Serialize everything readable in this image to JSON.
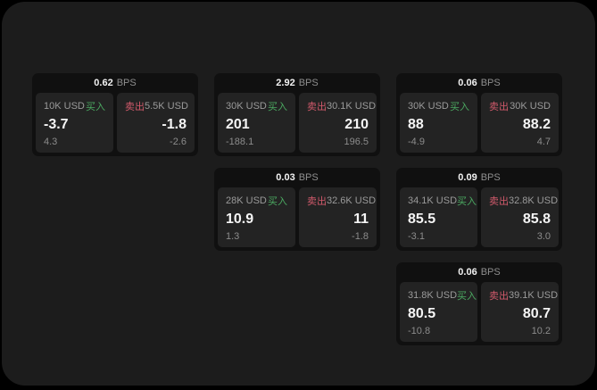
{
  "labels": {
    "buy": "买入",
    "sell": "卖出",
    "bps": "BPS"
  },
  "colors": {
    "background": "#000000",
    "frame": "#1c1c1c",
    "card": "#101010",
    "panel": "#232323",
    "buy_green": "#4ba961",
    "sell_red": "#d15a6b",
    "text_primary": "#f5f5f5",
    "text_secondary": "#9a9a9a"
  },
  "cards": [
    {
      "bps": "0.62",
      "buy": {
        "amount": "10K USD",
        "value": "-3.7",
        "sub": "4.3"
      },
      "sell": {
        "amount": "5.5K USD",
        "value": "-1.8",
        "sub": "-2.6"
      }
    },
    {
      "bps": "2.92",
      "buy": {
        "amount": "30K USD",
        "value": "201",
        "sub": "-188.1"
      },
      "sell": {
        "amount": "30.1K USD",
        "value": "210",
        "sub": "196.5"
      }
    },
    {
      "bps": "0.06",
      "buy": {
        "amount": "30K USD",
        "value": "88",
        "sub": "-4.9"
      },
      "sell": {
        "amount": "30K USD",
        "value": "88.2",
        "sub": "4.7"
      }
    },
    {
      "bps": "0.03",
      "buy": {
        "amount": "28K USD",
        "value": "10.9",
        "sub": "1.3"
      },
      "sell": {
        "amount": "32.6K USD",
        "value": "11",
        "sub": "-1.8"
      }
    },
    {
      "bps": "0.09",
      "buy": {
        "amount": "34.1K USD",
        "value": "85.5",
        "sub": "-3.1"
      },
      "sell": {
        "amount": "32.8K USD",
        "value": "85.8",
        "sub": "3.0"
      }
    },
    {
      "bps": "0.06",
      "buy": {
        "amount": "31.8K USD",
        "value": "80.5",
        "sub": "-10.8"
      },
      "sell": {
        "amount": "39.1K USD",
        "value": "80.7",
        "sub": "10.2"
      }
    }
  ]
}
